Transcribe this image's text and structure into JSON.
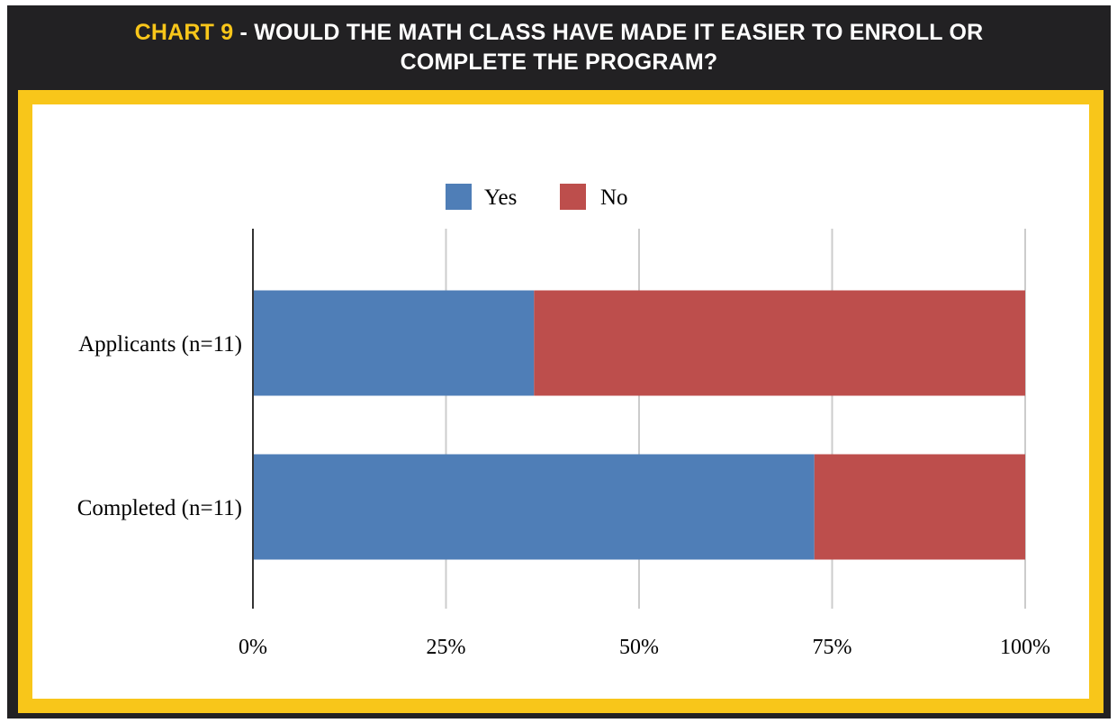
{
  "header": {
    "title_highlight": "CHART 9",
    "title_rest": " - WOULD THE MATH CLASS HAVE MADE IT EASIER TO ENROLL OR",
    "title_line2": "COMPLETE THE PROGRAM?"
  },
  "colors": {
    "frame": "#222123",
    "accent_yellow": "#f8c61a",
    "yes": "#4f7eb7",
    "no": "#bd4e4c",
    "grid": "#cccccc"
  },
  "chart_data": {
    "type": "bar",
    "orientation": "horizontal",
    "stacked": "percent",
    "categories": [
      "Applicants (n=11)",
      "Completed (n=11)"
    ],
    "series": [
      {
        "name": "Yes",
        "values": [
          36.4,
          72.7
        ]
      },
      {
        "name": "No",
        "values": [
          63.6,
          27.3
        ]
      }
    ],
    "xlim": [
      0,
      100
    ],
    "x_ticks": [
      "0%",
      "25%",
      "50%",
      "75%",
      "100%"
    ],
    "grid": true,
    "legend": "top"
  }
}
